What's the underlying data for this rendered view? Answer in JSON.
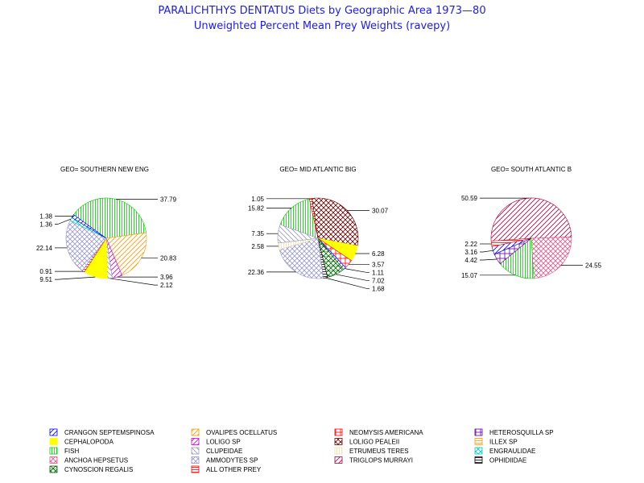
{
  "title": "PARALICHTHYS DENTATUS Diets by Geographic Area 1973—80",
  "subtitle": "Unweighted Percent Mean Prey Weights (ravepy)",
  "categories": {
    "crangon": {
      "label": "CRANGON SEPTEMSPINOSA",
      "color": "#0000ff",
      "pattern": "diag-up"
    },
    "cephalopoda": {
      "label": "CEPHALOPODA",
      "color": "#ffff00",
      "pattern": "solid"
    },
    "fish": {
      "label": "FISH",
      "color": "#00cc00",
      "pattern": "vert"
    },
    "anchoa": {
      "label": "ANCHOA HEPSETUS",
      "color": "#e8558a",
      "pattern": "cross-diag"
    },
    "cynoscion": {
      "label": "CYNOSCION REGALIS",
      "color": "#006600",
      "pattern": "cross-diag-box"
    },
    "ovalipes": {
      "label": "OVALIPES OCELLATUS",
      "color": "#ff9900",
      "pattern": "diag-up"
    },
    "loligo": {
      "label": "LOLIGO SP",
      "color": "#cc00cc",
      "pattern": "diag-up"
    },
    "clupeidae": {
      "label": "CLUPEIDAE",
      "color": "#9999bb",
      "pattern": "diag-down"
    },
    "ammodytes": {
      "label": "AMMODYTES SP",
      "color": "#9999cc",
      "pattern": "cross-diag"
    },
    "other": {
      "label": "ALL OTHER PREY",
      "color": "#ff0000",
      "pattern": "horiz"
    },
    "neomysis": {
      "label": "NEOMYSIS AMERICANA",
      "color": "#ff0000",
      "pattern": "box"
    },
    "pealeii": {
      "label": "LOLIGO PEALEII",
      "color": "#660000",
      "pattern": "cross-diag"
    },
    "etrumeus": {
      "label": "ETRUMEUS TERES",
      "color": "#f5deb3",
      "pattern": "vert"
    },
    "triglops": {
      "label": "TRIGLOPS MURRAYI",
      "color": "#aa0044",
      "pattern": "diag-up"
    },
    "heterosquilla": {
      "label": "HETEROSQUILLA SP",
      "color": "#660099",
      "pattern": "box"
    },
    "illex": {
      "label": "ILLEX SP",
      "color": "#ff9900",
      "pattern": "horiz"
    },
    "engraulidae": {
      "label": "ENGRAULIDAE",
      "color": "#00cccc",
      "pattern": "cross-diag"
    },
    "ophidiidae": {
      "label": "OPHIDIIDAE",
      "color": "#000000",
      "pattern": "horiz"
    }
  },
  "legend_order": [
    [
      "crangon",
      "cephalopoda",
      "fish",
      "anchoa",
      "cynoscion"
    ],
    [
      "ovalipes",
      "loligo",
      "clupeidae",
      "ammodytes",
      "other"
    ],
    [
      "neomysis",
      "pealeii",
      "etrumeus",
      "triglops"
    ],
    [
      "heterosquilla",
      "illex",
      "engraulidae",
      "ophidiidae"
    ]
  ],
  "chart_data": [
    {
      "type": "pie",
      "title": "GEO= SOUTHERN NEW ENG",
      "slices": [
        {
          "category": "fish",
          "value": 37.79
        },
        {
          "category": "ovalipes",
          "value": 20.83
        },
        {
          "category": "loligo",
          "value": 3.96
        },
        {
          "category": "clupeidae",
          "value": 2.12
        },
        {
          "category": "cephalopoda",
          "value": 9.51
        },
        {
          "category": "other",
          "value": 0.91
        },
        {
          "category": "ammodytes",
          "value": 22.14
        },
        {
          "category": "engraulidae",
          "value": 1.36
        },
        {
          "category": "crangon",
          "value": 1.38
        }
      ],
      "labels": [
        "37.79",
        "20.83",
        "3.96",
        "2.12",
        "9.51",
        "0.91",
        "22.14",
        "1.36",
        "1.38"
      ]
    },
    {
      "type": "pie",
      "title": "GEO= MID ATLANTIC BIG",
      "slices": [
        {
          "category": "fish",
          "value": 15.82
        },
        {
          "category": "other",
          "value": 1.05
        },
        {
          "category": "pealeii",
          "value": 30.07
        },
        {
          "category": "cephalopoda",
          "value": 6.28
        },
        {
          "category": "neomysis",
          "value": 3.57
        },
        {
          "category": "crangon",
          "value": 1.11
        },
        {
          "category": "cynoscion",
          "value": 7.02
        },
        {
          "category": "ophidiidae",
          "value": 1.68
        },
        {
          "category": "ammodytes",
          "value": 22.36
        },
        {
          "category": "etrumeus",
          "value": 2.58
        },
        {
          "category": "clupeidae",
          "value": 7.35
        }
      ],
      "labels": [
        "15.82",
        "1.05",
        "30.07",
        "6.28",
        "3.57",
        "1.11",
        "7.02",
        "1.68",
        "22.36",
        "2.58",
        "7.35"
      ]
    },
    {
      "type": "pie",
      "title": "GEO= SOUTH ATLANTIC B",
      "slices": [
        {
          "category": "triglops",
          "value": 50.59
        },
        {
          "category": "anchoa",
          "value": 24.55
        },
        {
          "category": "fish",
          "value": 15.07
        },
        {
          "category": "heterosquilla",
          "value": 4.42
        },
        {
          "category": "crangon",
          "value": 3.16
        },
        {
          "category": "other",
          "value": 2.22
        }
      ],
      "labels": [
        "50.59",
        "24.55",
        "15.07",
        "4.42",
        "3.16",
        "2.22"
      ]
    }
  ]
}
